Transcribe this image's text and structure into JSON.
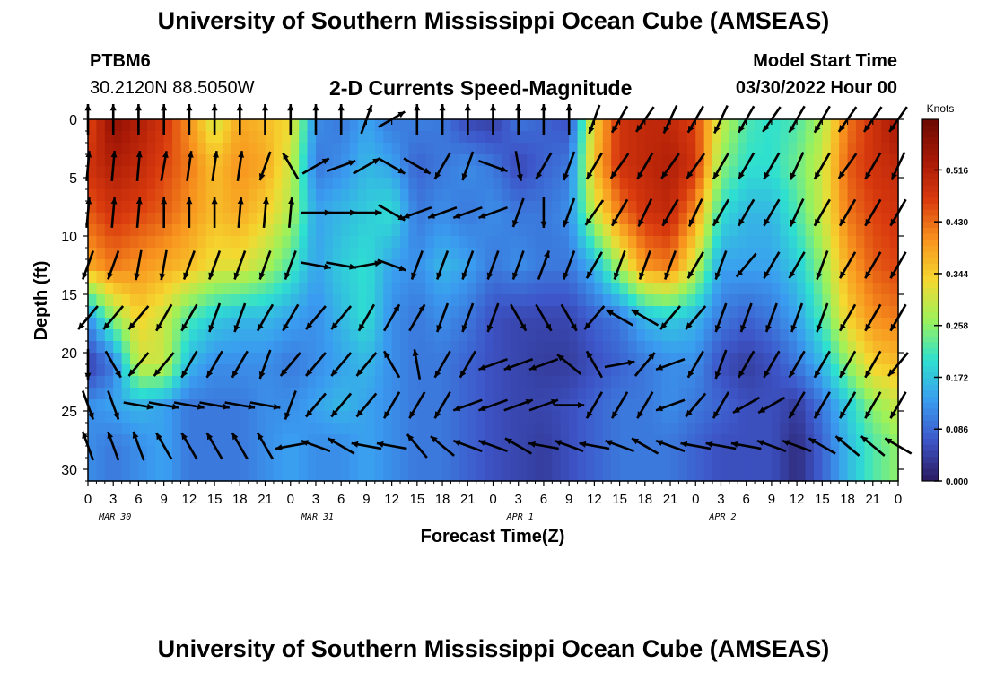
{
  "header": {
    "title": "University of Southern Mississippi Ocean Cube (AMSEAS)",
    "station": "PTBM6",
    "location": "30.2120N  88.5050W",
    "plot_title": "2-D Currents Speed-Magnitude",
    "model_start_label": "Model Start Time",
    "model_start_value": "03/30/2022 Hour 00"
  },
  "footer": {
    "title": "University of Southern Mississippi Ocean Cube (AMSEAS)"
  },
  "chart_data": {
    "type": "heatmap",
    "xlabel": "Forecast Time(Z)",
    "ylabel": "Depth (ft)",
    "x_ticks": [
      "0",
      "3",
      "6",
      "9",
      "12",
      "15",
      "18",
      "21",
      "0",
      "3",
      "6",
      "9",
      "12",
      "15",
      "18",
      "21",
      "0",
      "3",
      "6",
      "9",
      "12",
      "15",
      "18",
      "21",
      "0",
      "3",
      "6",
      "9",
      "12",
      "15",
      "18",
      "21",
      "0"
    ],
    "date_labels": [
      "MAR 30",
      "MAR 31",
      "APR 1",
      "APR 2"
    ],
    "y_ticks": [
      "0",
      "5",
      "10",
      "15",
      "20",
      "25",
      "30"
    ],
    "ylim": [
      0,
      31
    ],
    "x_range_hours": [
      0,
      96
    ],
    "colorbar": {
      "title": "Knots",
      "ticks": [
        "0.516",
        "0.430",
        "0.344",
        "0.258",
        "0.172",
        "0.086",
        "0.000"
      ],
      "range": [
        0,
        0.6
      ],
      "colors": [
        "#2a1a5e",
        "#3d55c8",
        "#3a9cf0",
        "#2ee0d0",
        "#9cf25a",
        "#f5d830",
        "#f8931e",
        "#d93a0e",
        "#a61806",
        "#6b0a02"
      ]
    },
    "arrow_depths_ft": [
      0,
      4,
      8,
      12.5,
      17,
      21,
      24.5,
      28
    ],
    "arrow_times_hours": [
      0,
      3,
      6,
      9,
      12,
      15,
      18,
      21,
      24,
      27,
      30,
      33,
      36,
      39,
      42,
      45,
      48,
      51,
      54,
      57,
      60,
      63,
      66,
      69,
      72,
      75,
      78,
      81,
      84,
      87,
      90,
      93,
      96
    ],
    "speed_knots_by_depth": [
      [
        0.45,
        0.56,
        0.52,
        0.48,
        0.4,
        0.3,
        0.38,
        0.36,
        0.33,
        0.12,
        0.1,
        0.14,
        0.1,
        0.11,
        0.1,
        0.05,
        0.04,
        0.1,
        0.08,
        0.06,
        0.34,
        0.48,
        0.5,
        0.5,
        0.46,
        0.3,
        0.22,
        0.2,
        0.22,
        0.28,
        0.42,
        0.48,
        0.54
      ],
      [
        0.48,
        0.52,
        0.5,
        0.46,
        0.42,
        0.36,
        0.4,
        0.38,
        0.3,
        0.1,
        0.12,
        0.16,
        0.14,
        0.08,
        0.1,
        0.12,
        0.1,
        0.05,
        0.08,
        0.1,
        0.36,
        0.48,
        0.5,
        0.52,
        0.48,
        0.26,
        0.2,
        0.2,
        0.24,
        0.3,
        0.44,
        0.48,
        0.5
      ],
      [
        0.44,
        0.48,
        0.46,
        0.44,
        0.4,
        0.36,
        0.38,
        0.34,
        0.28,
        0.14,
        0.16,
        0.18,
        0.2,
        0.1,
        0.12,
        0.1,
        0.12,
        0.1,
        0.1,
        0.12,
        0.3,
        0.42,
        0.48,
        0.5,
        0.4,
        0.2,
        0.16,
        0.16,
        0.22,
        0.3,
        0.42,
        0.46,
        0.48
      ],
      [
        0.38,
        0.42,
        0.4,
        0.38,
        0.36,
        0.32,
        0.32,
        0.28,
        0.22,
        0.14,
        0.18,
        0.2,
        0.14,
        0.12,
        0.16,
        0.14,
        0.1,
        0.12,
        0.1,
        0.1,
        0.16,
        0.28,
        0.4,
        0.42,
        0.3,
        0.14,
        0.14,
        0.14,
        0.18,
        0.26,
        0.38,
        0.44,
        0.46
      ],
      [
        0.12,
        0.26,
        0.34,
        0.3,
        0.22,
        0.18,
        0.16,
        0.16,
        0.14,
        0.12,
        0.16,
        0.2,
        0.12,
        0.1,
        0.12,
        0.1,
        0.06,
        0.05,
        0.05,
        0.05,
        0.08,
        0.1,
        0.16,
        0.18,
        0.16,
        0.1,
        0.08,
        0.1,
        0.14,
        0.22,
        0.34,
        0.4,
        0.42
      ],
      [
        0.04,
        0.1,
        0.3,
        0.3,
        0.16,
        0.12,
        0.12,
        0.12,
        0.1,
        0.12,
        0.14,
        0.16,
        0.12,
        0.1,
        0.1,
        0.08,
        0.06,
        0.05,
        0.04,
        0.04,
        0.06,
        0.08,
        0.1,
        0.12,
        0.12,
        0.06,
        0.04,
        0.06,
        0.1,
        0.16,
        0.26,
        0.34,
        0.36
      ],
      [
        0.12,
        0.14,
        0.16,
        0.14,
        0.1,
        0.1,
        0.1,
        0.12,
        0.12,
        0.14,
        0.16,
        0.14,
        0.12,
        0.1,
        0.1,
        0.08,
        0.06,
        0.05,
        0.05,
        0.06,
        0.08,
        0.1,
        0.1,
        0.12,
        0.1,
        0.08,
        0.06,
        0.06,
        0.04,
        0.1,
        0.18,
        0.26,
        0.3
      ],
      [
        0.12,
        0.1,
        0.12,
        0.14,
        0.1,
        0.1,
        0.1,
        0.12,
        0.14,
        0.12,
        0.12,
        0.14,
        0.12,
        0.1,
        0.1,
        0.08,
        0.06,
        0.05,
        0.04,
        0.06,
        0.08,
        0.1,
        0.1,
        0.1,
        0.08,
        0.06,
        0.06,
        0.06,
        0.02,
        0.08,
        0.16,
        0.22,
        0.26
      ]
    ],
    "direction_deg_by_depth": [
      [
        0,
        0,
        0,
        0,
        0,
        0,
        0,
        0,
        0,
        0,
        0,
        20,
        60,
        0,
        0,
        0,
        0,
        0,
        0,
        0,
        200,
        210,
        215,
        205,
        210,
        205,
        210,
        215,
        210,
        210,
        215,
        215,
        215
      ],
      [
        5,
        5,
        5,
        10,
        8,
        8,
        8,
        200,
        330,
        60,
        70,
        60,
        120,
        120,
        210,
        200,
        110,
        170,
        210,
        200,
        210,
        215,
        210,
        215,
        215,
        210,
        210,
        210,
        205,
        210,
        215,
        210,
        205
      ],
      [
        5,
        5,
        5,
        0,
        0,
        0,
        5,
        5,
        5,
        90,
        90,
        90,
        120,
        250,
        250,
        250,
        250,
        200,
        180,
        200,
        215,
        210,
        205,
        210,
        205,
        210,
        210,
        210,
        205,
        210,
        210,
        210,
        210
      ],
      [
        200,
        200,
        190,
        190,
        200,
        200,
        200,
        200,
        200,
        100,
        100,
        80,
        110,
        200,
        200,
        200,
        200,
        200,
        20,
        200,
        210,
        200,
        200,
        200,
        210,
        200,
        220,
        210,
        210,
        200,
        210,
        210,
        210
      ],
      [
        220,
        220,
        220,
        210,
        210,
        200,
        200,
        210,
        210,
        220,
        220,
        210,
        30,
        30,
        200,
        200,
        200,
        150,
        150,
        150,
        220,
        300,
        300,
        220,
        220,
        200,
        200,
        200,
        200,
        200,
        210,
        210,
        210
      ],
      [
        180,
        150,
        220,
        220,
        210,
        210,
        210,
        200,
        220,
        220,
        220,
        220,
        330,
        350,
        210,
        210,
        250,
        250,
        250,
        310,
        330,
        80,
        40,
        250,
        210,
        200,
        210,
        210,
        210,
        210,
        210,
        210,
        220
      ],
      [
        160,
        160,
        100,
        100,
        100,
        100,
        100,
        100,
        200,
        220,
        220,
        220,
        210,
        210,
        210,
        250,
        250,
        70,
        70,
        90,
        210,
        210,
        210,
        250,
        220,
        210,
        240,
        240,
        210,
        210,
        210,
        210,
        210
      ],
      [
        340,
        340,
        340,
        330,
        330,
        330,
        330,
        330,
        260,
        290,
        300,
        280,
        280,
        320,
        310,
        290,
        290,
        300,
        280,
        290,
        280,
        290,
        300,
        290,
        280,
        280,
        280,
        290,
        290,
        300,
        310,
        310,
        300
      ]
    ]
  }
}
